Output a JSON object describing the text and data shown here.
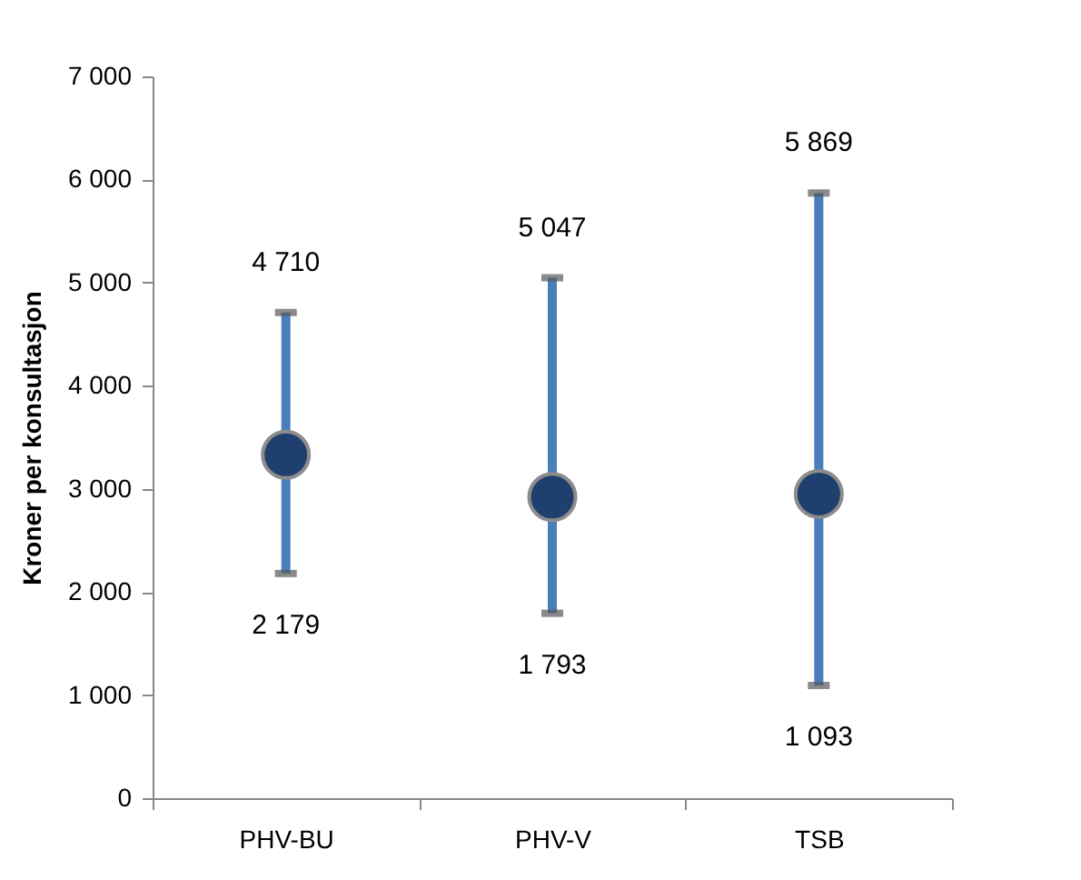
{
  "chart_data": {
    "type": "scatter",
    "ylabel": "Kroner per konsultasjon",
    "categories": [
      "PHV-BU",
      "PHV-V",
      "TSB"
    ],
    "series": [
      {
        "color": "#1f3f6e",
        "values": [
          3330,
          2920,
          2950
        ],
        "errors": [
          [
            2179,
            4710
          ],
          [
            1793,
            5047
          ],
          [
            1093,
            5869
          ]
        ]
      }
    ],
    "annotations": [
      {
        "text": "4 710",
        "x": "PHV-BU",
        "y": 4710
      },
      {
        "text": "2 179",
        "x": "PHV-BU",
        "y": 2179
      },
      {
        "text": "5 047",
        "x": "PHV-V",
        "y": 5047
      },
      {
        "text": "1 793",
        "x": "PHV-V",
        "y": 1793
      },
      {
        "text": "5 869",
        "x": "TSB",
        "y": 5869
      },
      {
        "text": "1 093",
        "x": "TSB",
        "y": 1093
      }
    ],
    "ylim": [
      0,
      7000
    ],
    "yticks": [
      {
        "value": 0,
        "label": "0"
      },
      {
        "value": 1000,
        "label": "1 000"
      },
      {
        "value": 2000,
        "label": "2 000"
      },
      {
        "value": 3000,
        "label": "3 000"
      },
      {
        "value": 4000,
        "label": "4 000"
      },
      {
        "value": 5000,
        "label": "5 000"
      },
      {
        "value": 6000,
        "label": "6 000"
      },
      {
        "value": 7000,
        "label": "7 000"
      }
    ],
    "grid": false,
    "marker": "circle"
  }
}
